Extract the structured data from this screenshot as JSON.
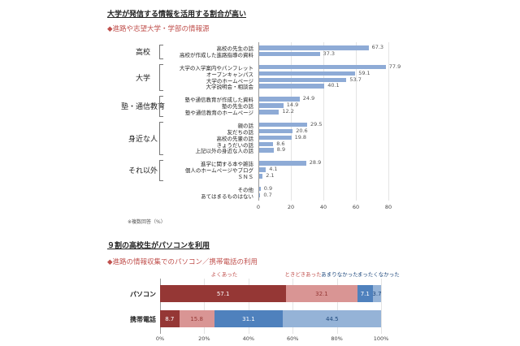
{
  "headline1": "大学が発信する情報を活用する割合が高い",
  "subtitle1": "◆進路や志望大学・学部の情報源",
  "headline2": "９割の高校生がパソコンを利用",
  "subtitle2": "◆進路の情報収集でのパソコン／携帯電話の利用",
  "chart_data": [
    {
      "type": "bar",
      "orientation": "horizontal",
      "bar_color": "#8eabd6",
      "xlim": [
        0,
        80
      ],
      "xticks": [
        "0",
        "20",
        "40",
        "60",
        "80"
      ],
      "grid": true,
      "note": "※複数回答（%）",
      "groups": [
        {
          "name": "高校",
          "items": [
            {
              "label": "高校の先生の話",
              "value": 67.3
            },
            {
              "label": "高校が作成した進路指導の資料",
              "value": 37.3
            }
          ]
        },
        {
          "name": "大学",
          "items": [
            {
              "label": "大学の入学案内やパンフレット",
              "value": 77.9
            },
            {
              "label": "オープンキャンパス",
              "value": 59.1
            },
            {
              "label": "大学のホームページ",
              "value": 53.7
            },
            {
              "label": "大学説明会・相談会",
              "value": 40.1
            }
          ]
        },
        {
          "name": "塾・通信教育",
          "items": [
            {
              "label": "塾や通信教育が作成した資料",
              "value": 24.9
            },
            {
              "label": "塾の先生の話",
              "value": 14.9
            },
            {
              "label": "塾や通信教育のホームページ",
              "value": 12.2
            }
          ]
        },
        {
          "name": "身近な人",
          "items": [
            {
              "label": "親の話",
              "value": 29.5
            },
            {
              "label": "友だちの話",
              "value": 20.6
            },
            {
              "label": "高校の先輩の話",
              "value": 19.8
            },
            {
              "label": "きょうだいの話",
              "value": 8.6
            },
            {
              "label": "上記以外の身近な人の話",
              "value": 8.9
            }
          ]
        },
        {
          "name": "それ以外",
          "items": [
            {
              "label": "進学に関する本や雑誌",
              "value": 28.9
            },
            {
              "label": "個人のホームページやブログ",
              "value": 4.1
            },
            {
              "label": "ＳＮＳ",
              "value": 2.1
            }
          ]
        },
        {
          "name": "",
          "items": [
            {
              "label": "その他",
              "value": 0.9
            },
            {
              "label": "あてはまるものはない",
              "value": 0.7
            }
          ]
        }
      ]
    },
    {
      "type": "bar",
      "orientation": "horizontal",
      "stacked": "100%",
      "xticks": [
        "0%",
        "20%",
        "40%",
        "60%",
        "80%",
        "100%"
      ],
      "grid": true,
      "categories": [
        "パソコン",
        "携帯電話"
      ],
      "series": [
        {
          "name": "よくあった",
          "color": "#953735",
          "text_color": "#ffffff",
          "label_color": "#c0504d",
          "values": [
            57.1,
            8.7
          ]
        },
        {
          "name": "ときどきあった",
          "color": "#d99594",
          "text_color": "#953735",
          "label_color": "#c0504d",
          "values": [
            32.1,
            15.8
          ]
        },
        {
          "name": "あまりなかった",
          "color": "#4f81bd",
          "text_color": "#ffffff",
          "label_color": "#1f497d",
          "values": [
            7.1,
            31.1
          ]
        },
        {
          "name": "まったくなかった",
          "color": "#95b3d7",
          "text_color": "#1f497d",
          "label_color": "#1f497d",
          "values": [
            3.7,
            44.5
          ]
        }
      ]
    }
  ]
}
